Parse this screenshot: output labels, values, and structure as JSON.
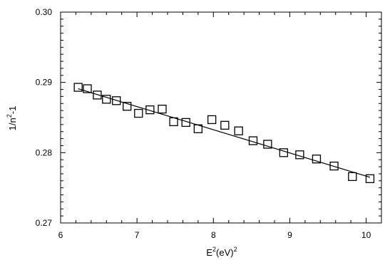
{
  "chart_data": {
    "type": "scatter",
    "xlabel": {
      "base": "E",
      "sup1": "2",
      "mid": "(eV)",
      "sup2": "2"
    },
    "ylabel": {
      "pre": "1/n",
      "sup": "2",
      "post": "-1"
    },
    "xlim": [
      6,
      10.2
    ],
    "ylim": [
      0.27,
      0.3
    ],
    "x_ticks": [
      6,
      7,
      8,
      9,
      10
    ],
    "y_ticks": [
      0.27,
      0.28,
      0.29,
      0.3
    ],
    "x_tick_labels": [
      "6",
      "7",
      "8",
      "9",
      "10"
    ],
    "y_tick_labels": [
      "0.27",
      "0.28",
      "0.29",
      "0.30"
    ],
    "series": [
      {
        "marker": "open-square",
        "x": [
          6.23,
          6.35,
          6.48,
          6.6,
          6.73,
          6.87,
          7.02,
          7.17,
          7.33,
          7.48,
          7.64,
          7.8,
          7.98,
          8.15,
          8.33,
          8.52,
          8.71,
          8.92,
          9.13,
          9.35,
          9.58,
          9.82,
          10.05
        ],
        "y": [
          0.2893,
          0.2891,
          0.2882,
          0.2876,
          0.2874,
          0.2866,
          0.2856,
          0.2861,
          0.2862,
          0.2844,
          0.2843,
          0.2834,
          0.2847,
          0.2839,
          0.2831,
          0.2817,
          0.2812,
          0.28,
          0.2797,
          0.2791,
          0.2781,
          0.2766,
          0.2763
        ]
      }
    ],
    "fit_line": {
      "x": [
        6.23,
        10.05
      ],
      "y": [
        0.2891,
        0.2765
      ]
    }
  }
}
